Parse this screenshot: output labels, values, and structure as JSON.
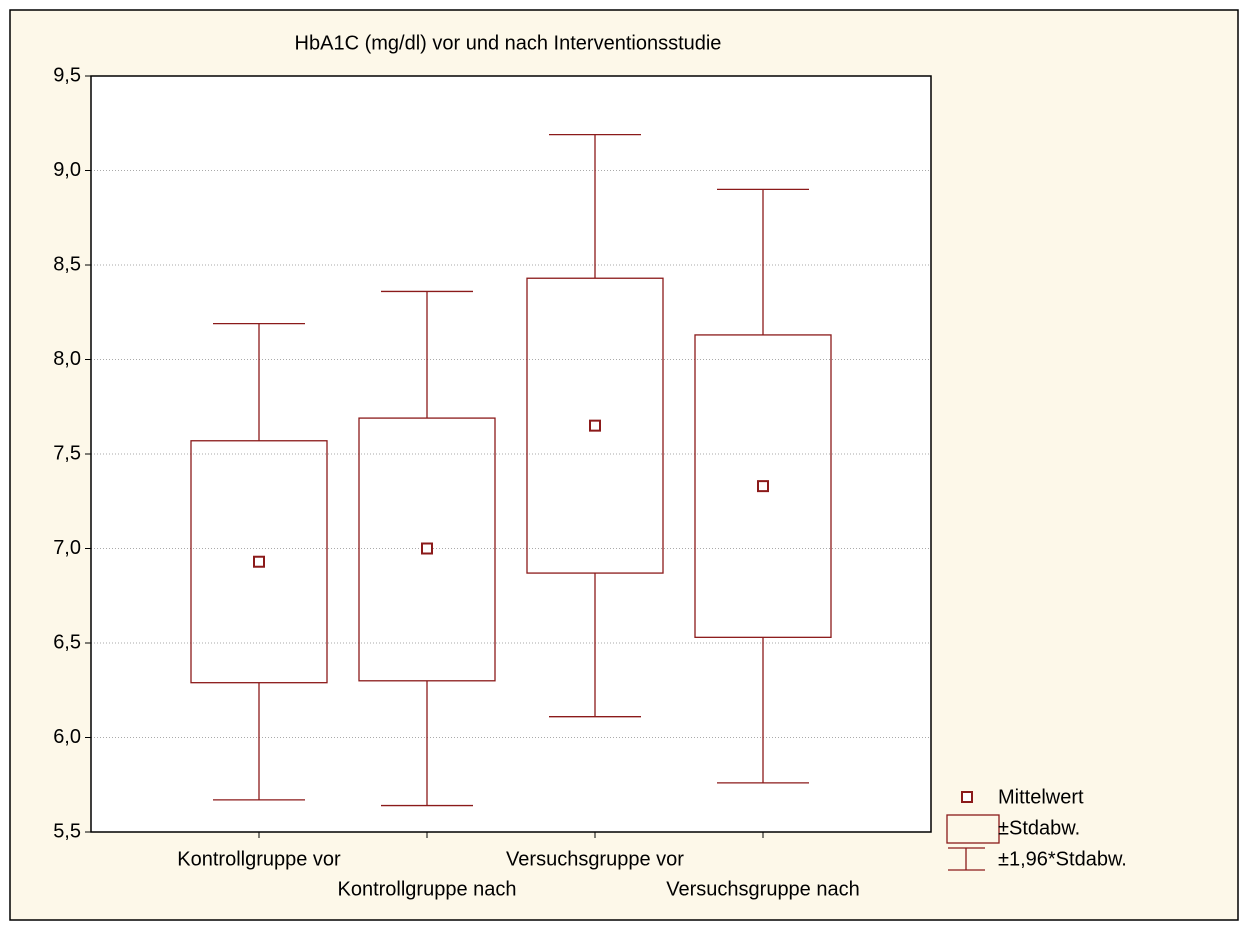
{
  "chart_data": {
    "type": "box",
    "title": "HbA1C (mg/dl)  vor und nach Interventionsstudie",
    "categories": [
      "Kontrollgruppe vor",
      "Kontrollgruppe nach",
      "Versuchsgruppe vor",
      "Versuchsgruppe nach"
    ],
    "color": "#8b1a1a",
    "means": {
      "name": "Mittelwert",
      "values": [
        6.93,
        7.0,
        7.65,
        7.33
      ]
    },
    "sd_box": {
      "name": "±Stdabw.",
      "low": [
        6.29,
        6.3,
        6.87,
        6.53
      ],
      "high": [
        7.57,
        7.69,
        8.43,
        8.13
      ]
    },
    "whiskers": {
      "name": "±1,96*Stdabw.",
      "low": [
        5.67,
        5.64,
        6.11,
        5.76
      ],
      "high": [
        8.19,
        8.36,
        9.19,
        8.9
      ]
    },
    "ylim": [
      5.5,
      9.5
    ],
    "yticks": [
      {
        "value": 5.5,
        "label": "5,5"
      },
      {
        "value": 6,
        "label": "6,0"
      },
      {
        "value": 6.5,
        "label": "6,5"
      },
      {
        "value": 7,
        "label": "7,0"
      },
      {
        "value": 7.5,
        "label": "7,5"
      },
      {
        "value": 8,
        "label": "8,0"
      },
      {
        "value": 8.5,
        "label": "8,5"
      },
      {
        "value": 9,
        "label": "9,0"
      },
      {
        "value": 9.5,
        "label": "9,5"
      }
    ],
    "grid": true
  }
}
